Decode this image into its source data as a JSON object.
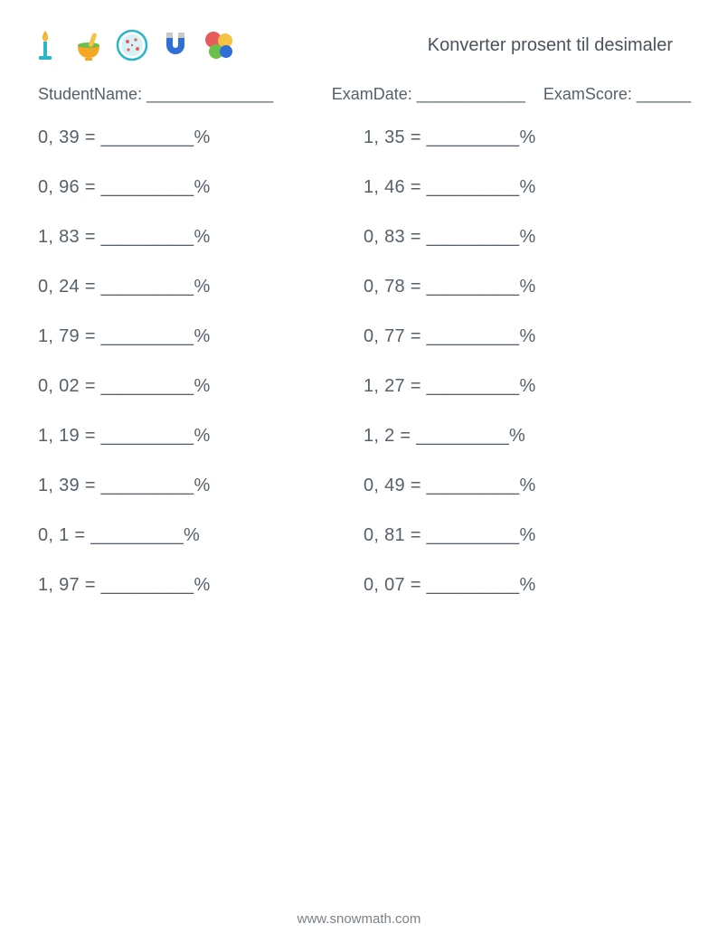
{
  "header": {
    "title": "Konverter prosent til desimaler",
    "icons": [
      {
        "name": "bunsen-burner-icon"
      },
      {
        "name": "mortar-pestle-icon"
      },
      {
        "name": "petri-dish-icon"
      },
      {
        "name": "magnet-icon"
      },
      {
        "name": "molecule-icon"
      }
    ]
  },
  "meta": {
    "student_label": "StudentName: ______________",
    "date_label": "ExamDate: ____________",
    "score_label": "ExamScore: ______"
  },
  "blank": "_________",
  "rows": [
    {
      "left": "0, 39",
      "right": "1, 35"
    },
    {
      "left": "0, 96",
      "right": "1, 46"
    },
    {
      "left": "1, 83",
      "right": "0, 83"
    },
    {
      "left": "0, 24",
      "right": "0, 78"
    },
    {
      "left": "1, 79",
      "right": "0, 77"
    },
    {
      "left": "0, 02",
      "right": "1, 27"
    },
    {
      "left": "1, 19",
      "right": "1, 2"
    },
    {
      "left": "1, 39",
      "right": "0, 49"
    },
    {
      "left": "0, 1",
      "right": "0, 81"
    },
    {
      "left": "1, 97",
      "right": "0, 07"
    }
  ],
  "footer": "www.snowmath.com",
  "colors": {
    "text": "#55606a",
    "bg": "#ffffff",
    "orange": "#f5a623",
    "teal": "#2bb6c7",
    "blue": "#2f6fd6",
    "yellow": "#f6c244",
    "red": "#e85c5c",
    "green": "#6cbf4b",
    "light_blue": "#a6d9ef"
  }
}
